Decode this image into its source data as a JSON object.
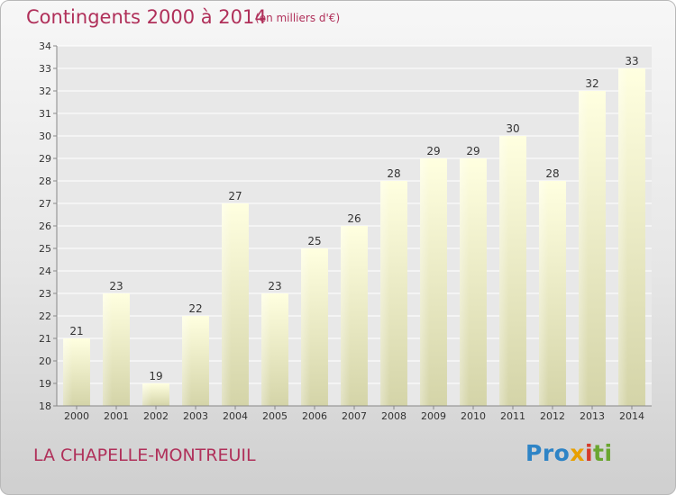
{
  "header": {
    "title": "Contingents 2000 à 2014",
    "subtitle": "(en milliers d'€)"
  },
  "footer": {
    "commune": "LA CHAPELLE-MONTREUIL",
    "logo_parts": [
      "Pro",
      "x",
      "i",
      "ti"
    ]
  },
  "colors": {
    "title": "#b0305a",
    "bar_light": "#ffffe0",
    "bar_dark": "#d4d4a8"
  },
  "chart_data": {
    "type": "bar",
    "title": "Contingents 2000 à 2014",
    "subtitle": "(en milliers d'€)",
    "categories": [
      "2000",
      "2001",
      "2002",
      "2003",
      "2004",
      "2005",
      "2006",
      "2007",
      "2008",
      "2009",
      "2010",
      "2011",
      "2012",
      "2013",
      "2014"
    ],
    "values": [
      21,
      23,
      19,
      22,
      27,
      23,
      25,
      26,
      28,
      29,
      29,
      30,
      28,
      32,
      33
    ],
    "ylim": [
      18,
      34
    ],
    "yticks": [
      18,
      19,
      20,
      21,
      22,
      23,
      24,
      25,
      26,
      27,
      28,
      29,
      30,
      31,
      32,
      33,
      34
    ],
    "grid": true,
    "data_labels": true
  }
}
